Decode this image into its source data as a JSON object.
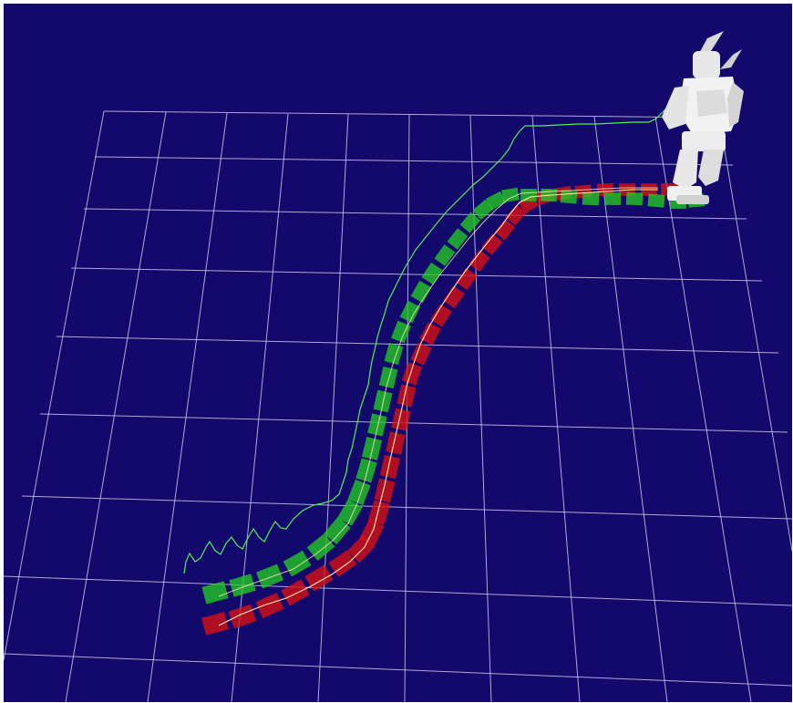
{
  "viewport": {
    "background": "#13086b",
    "grid_color": "#c8c8e8",
    "icon": "humanoid-robot-icon"
  },
  "footsteps": {
    "left_color": "#22cc22",
    "right_color": "#dd1111",
    "planned_left_color": "#33dd33",
    "planned_right_color": "#ee2222"
  },
  "trajectories": {
    "zmp_color": "#55ee55",
    "com_color": "#ffeeaa"
  }
}
